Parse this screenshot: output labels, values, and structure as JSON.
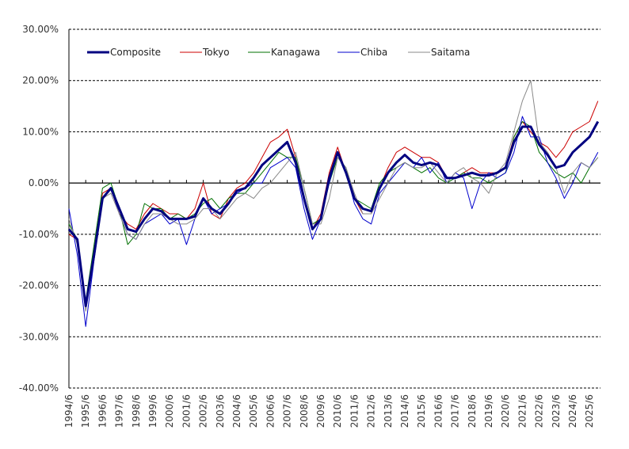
{
  "chart_data": {
    "type": "line",
    "title": "",
    "xlabel": "",
    "ylabel": "",
    "ylim": [
      -40,
      30
    ],
    "yticks": [
      "30.00%",
      "20.00%",
      "10.00%",
      "0.00%",
      "-10.00%",
      "-20.00%",
      "-30.00%",
      "-40.00%"
    ],
    "ytick_values": [
      30,
      20,
      10,
      0,
      -10,
      -20,
      -30,
      -40
    ],
    "xticks": [
      "1994/6",
      "1995/6",
      "1996/6",
      "1997/6",
      "1998/6",
      "1999/6",
      "2000/6",
      "2001/6",
      "2002/6",
      "2003/6",
      "2004/6",
      "2005/6",
      "2006/6",
      "2007/6",
      "2008/6",
      "2009/6",
      "2010/6",
      "2011/6",
      "2012/6",
      "2013/6",
      "2014/6",
      "2015/6",
      "2016/6",
      "2017/6",
      "2018/6",
      "2019/6",
      "2020/6",
      "2021/6",
      "2022/6",
      "2023/6",
      "2024/6",
      "2025/6"
    ],
    "grid": "horizontal dashed",
    "legend_position": "top-left inside",
    "x": [
      1994.5,
      1995.0,
      1995.5,
      1996.0,
      1996.5,
      1997.0,
      1997.5,
      1998.0,
      1998.5,
      1999.0,
      1999.5,
      2000.0,
      2000.5,
      2001.0,
      2001.5,
      2002.0,
      2002.5,
      2003.0,
      2003.5,
      2004.0,
      2004.5,
      2005.0,
      2005.5,
      2006.0,
      2006.5,
      2007.0,
      2007.5,
      2008.0,
      2008.5,
      2009.0,
      2009.5,
      2010.0,
      2010.5,
      2011.0,
      2011.5,
      2012.0,
      2012.5,
      2013.0,
      2013.5,
      2014.0,
      2014.5,
      2015.0,
      2015.5,
      2016.0,
      2016.5,
      2017.0,
      2017.5,
      2018.0,
      2018.5,
      2019.0,
      2019.5,
      2020.0,
      2020.5,
      2021.0,
      2021.5,
      2022.0,
      2022.5,
      2023.0,
      2023.5,
      2024.0,
      2024.5,
      2025.0,
      2025.5,
      2026.0
    ],
    "series": [
      {
        "name": "Composite",
        "color": "#000080",
        "width": 3,
        "values": [
          -9,
          -11,
          -24,
          -14,
          -3,
          -1,
          -5,
          -9,
          -9.5,
          -7,
          -5,
          -5.5,
          -7,
          -7,
          -7,
          -6.5,
          -3,
          -5,
          -6,
          -4,
          -1.5,
          -1,
          1,
          3.5,
          5,
          6.5,
          8,
          4,
          -3,
          -9,
          -7,
          1,
          6,
          2,
          -3,
          -5,
          -5.5,
          -1,
          2,
          4,
          5.5,
          4,
          3.5,
          4,
          3.5,
          1,
          1,
          1.5,
          2,
          1.5,
          1.5,
          2,
          3,
          8,
          11,
          11,
          7.5,
          5.5,
          3,
          3.5,
          6,
          7.5,
          9,
          12
        ]
      },
      {
        "name": "Tokyo",
        "color": "#cc0000",
        "width": 1,
        "values": [
          -10,
          -11,
          -24,
          -13,
          -2,
          -1,
          -6,
          -8,
          -9,
          -6,
          -4,
          -5,
          -6,
          -6,
          -7,
          -5,
          0,
          -6,
          -7,
          -3,
          -1,
          0,
          2,
          5,
          8,
          9,
          10.5,
          5,
          -3,
          -9,
          -6,
          2,
          7,
          2,
          -3,
          -6,
          -6,
          -1,
          3,
          6,
          7,
          6,
          5,
          5,
          4,
          1,
          1,
          2,
          3,
          2,
          2,
          2,
          3,
          9,
          12,
          10,
          8,
          7,
          5,
          7,
          10,
          11,
          12,
          16
        ]
      },
      {
        "name": "Kanagawa",
        "color": "#007000",
        "width": 1,
        "values": [
          -8,
          -11,
          -23,
          -12,
          -1,
          0,
          -5,
          -12,
          -10,
          -4,
          -5,
          -5,
          -7,
          -6,
          -7,
          -6,
          -4,
          -3,
          -5,
          -3,
          -2,
          -2,
          0,
          2,
          4,
          6,
          5,
          5,
          -1,
          -8,
          -7,
          0,
          5,
          3,
          -3,
          -4,
          -5,
          0,
          2,
          3,
          4,
          3,
          2,
          3,
          1,
          0,
          1,
          2,
          1,
          1,
          0,
          1,
          2,
          9,
          12,
          11,
          6,
          4,
          2,
          1,
          2,
          0,
          3,
          5
        ]
      },
      {
        "name": "Chiba",
        "color": "#0000cc",
        "width": 1,
        "values": [
          -5,
          -14,
          -28,
          -15,
          -3,
          -1,
          -6,
          -10,
          -11,
          -8,
          -7,
          -6,
          -8,
          -7,
          -12,
          -7,
          -3,
          -6,
          -5,
          -4,
          -2,
          -1,
          0,
          0,
          3,
          4,
          5,
          3,
          -5,
          -11,
          -7,
          0,
          6,
          2,
          -4,
          -7,
          -8,
          -2,
          0,
          2,
          4,
          3,
          5,
          2,
          4,
          0,
          2,
          1,
          -5,
          0,
          2,
          1,
          2,
          6,
          13,
          9,
          9,
          4,
          1,
          -3,
          0,
          4,
          3,
          6
        ]
      },
      {
        "name": "Saitama",
        "color": "#888888",
        "width": 1,
        "values": [
          -7,
          -12,
          -25,
          -14,
          -3,
          -2,
          -6,
          -10,
          -11,
          -8,
          -6,
          -6,
          -7,
          -8,
          -8,
          -7,
          -5,
          -5,
          -7,
          -5,
          -3,
          -2,
          -3,
          -1,
          0,
          2,
          4,
          6,
          -1,
          -8,
          -8,
          -3,
          5,
          3,
          -2,
          -6,
          -6,
          -3,
          0,
          3,
          4,
          3,
          3,
          4,
          2,
          0,
          2,
          3,
          1,
          0,
          -2,
          2,
          4,
          10,
          16,
          20,
          8,
          6,
          3,
          -2,
          2,
          4,
          3,
          5
        ]
      }
    ]
  },
  "legend": {
    "items": [
      {
        "label": "Composite",
        "color": "#000080",
        "width": 3
      },
      {
        "label": "Tokyo",
        "color": "#cc0000",
        "width": 1
      },
      {
        "label": "Kanagawa",
        "color": "#007000",
        "width": 1
      },
      {
        "label": "Chiba",
        "color": "#0000cc",
        "width": 1
      },
      {
        "label": "Saitama",
        "color": "#888888",
        "width": 1
      }
    ]
  }
}
